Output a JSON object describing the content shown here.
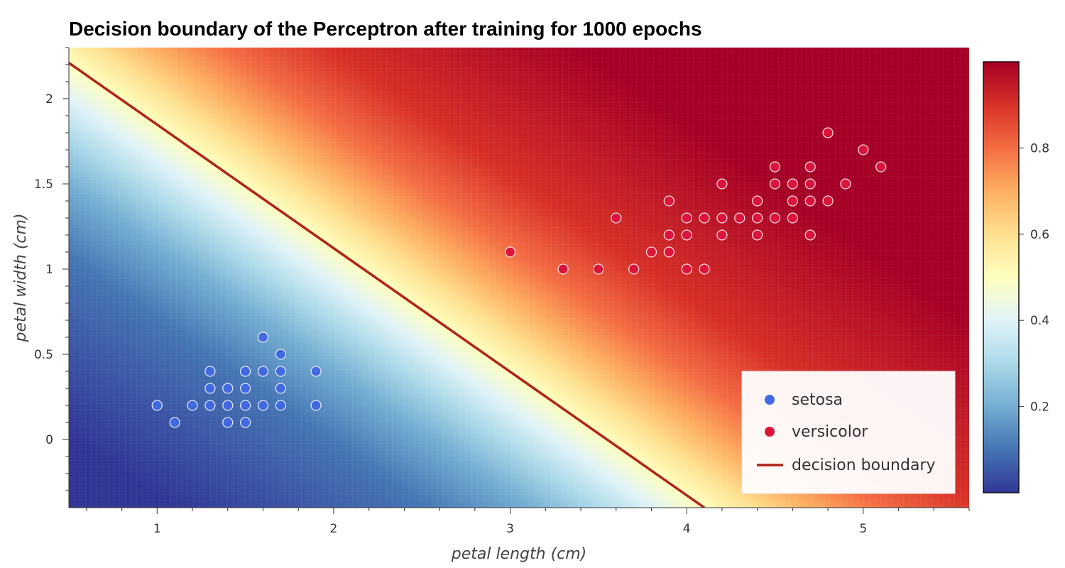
{
  "chart_data": {
    "type": "scatter",
    "title": "Decision boundary of the Perceptron after training for 1000 epochs",
    "xlabel": "petal length (cm)",
    "ylabel": "petal width (cm)",
    "xlim": [
      0.5,
      5.6
    ],
    "ylim": [
      -0.4,
      2.3
    ],
    "x_ticks": [
      {
        "value": 1,
        "label": "1"
      },
      {
        "value": 2,
        "label": "2"
      },
      {
        "value": 3,
        "label": "3"
      },
      {
        "value": 4,
        "label": "4"
      },
      {
        "value": 5,
        "label": "5"
      }
    ],
    "y_ticks": [
      {
        "value": 0,
        "label": "0"
      },
      {
        "value": 0.5,
        "label": "0.5"
      },
      {
        "value": 1,
        "label": "1"
      },
      {
        "value": 1.5,
        "label": "1.5"
      },
      {
        "value": 2,
        "label": "2"
      }
    ],
    "colorbar": {
      "range": [
        0.0,
        1.0
      ],
      "ticks": [
        {
          "value": 0.2,
          "label": "0.2"
        },
        {
          "value": 0.4,
          "label": "0.4"
        },
        {
          "value": 0.6,
          "label": "0.6"
        },
        {
          "value": 0.8,
          "label": "0.8"
        }
      ],
      "colormap": [
        "#313695",
        "#4575b4",
        "#74add1",
        "#abd9e9",
        "#e0f3f8",
        "#ffffbf",
        "#fee090",
        "#fdae61",
        "#f46d43",
        "#d73027",
        "#a50026"
      ]
    },
    "decision_boundary": {
      "name": "decision boundary",
      "color": "#b2221c",
      "x": [
        0.5,
        4.1
      ],
      "y": [
        2.21,
        -0.4
      ]
    },
    "series": [
      {
        "name": "setosa",
        "color": "#4169e1",
        "points": [
          [
            1.0,
            0.2
          ],
          [
            1.1,
            0.1
          ],
          [
            1.2,
            0.2
          ],
          [
            1.3,
            0.2
          ],
          [
            1.3,
            0.3
          ],
          [
            1.3,
            0.4
          ],
          [
            1.4,
            0.1
          ],
          [
            1.4,
            0.2
          ],
          [
            1.4,
            0.3
          ],
          [
            1.5,
            0.1
          ],
          [
            1.5,
            0.2
          ],
          [
            1.5,
            0.3
          ],
          [
            1.5,
            0.4
          ],
          [
            1.6,
            0.2
          ],
          [
            1.6,
            0.4
          ],
          [
            1.6,
            0.6
          ],
          [
            1.7,
            0.2
          ],
          [
            1.7,
            0.3
          ],
          [
            1.7,
            0.4
          ],
          [
            1.7,
            0.5
          ],
          [
            1.9,
            0.2
          ],
          [
            1.9,
            0.4
          ]
        ]
      },
      {
        "name": "versicolor",
        "color": "#dc143c",
        "points": [
          [
            3.0,
            1.1
          ],
          [
            3.3,
            1.0
          ],
          [
            3.5,
            1.0
          ],
          [
            3.6,
            1.3
          ],
          [
            3.7,
            1.0
          ],
          [
            3.8,
            1.1
          ],
          [
            3.9,
            1.1
          ],
          [
            3.9,
            1.2
          ],
          [
            3.9,
            1.4
          ],
          [
            4.0,
            1.0
          ],
          [
            4.0,
            1.2
          ],
          [
            4.0,
            1.3
          ],
          [
            4.1,
            1.0
          ],
          [
            4.1,
            1.3
          ],
          [
            4.2,
            1.2
          ],
          [
            4.2,
            1.3
          ],
          [
            4.2,
            1.5
          ],
          [
            4.3,
            1.3
          ],
          [
            4.4,
            1.2
          ],
          [
            4.4,
            1.3
          ],
          [
            4.4,
            1.4
          ],
          [
            4.5,
            1.3
          ],
          [
            4.5,
            1.5
          ],
          [
            4.5,
            1.6
          ],
          [
            4.6,
            1.3
          ],
          [
            4.6,
            1.4
          ],
          [
            4.6,
            1.5
          ],
          [
            4.7,
            1.2
          ],
          [
            4.7,
            1.4
          ],
          [
            4.7,
            1.5
          ],
          [
            4.7,
            1.6
          ],
          [
            4.8,
            1.4
          ],
          [
            4.8,
            1.8
          ],
          [
            4.9,
            1.5
          ],
          [
            5.0,
            1.7
          ],
          [
            5.1,
            1.6
          ]
        ]
      }
    ],
    "legend": {
      "position": "bottom-right",
      "entries": [
        {
          "label": "setosa",
          "kind": "marker",
          "color": "#4169e1"
        },
        {
          "label": "versicolor",
          "kind": "marker",
          "color": "#dc143c"
        },
        {
          "label": "decision boundary",
          "kind": "line",
          "color": "#b2221c"
        }
      ]
    }
  }
}
